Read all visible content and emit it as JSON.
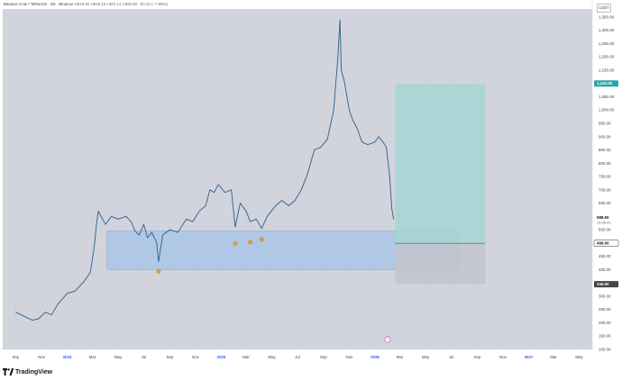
{
  "header": {
    "symbol": "Binance Coin / TetherUS · 3D · Binance",
    "ohlc": "O629.92 H646.15 L587.14 C589.50 −50.42 (−7.88%)"
  },
  "currency_badge": "USDT",
  "footer": {
    "brand": "TradingView"
  },
  "colors": {
    "background": "#d1d4dc",
    "line": "#2a5f8f",
    "demand_zone": "#a8c4e8",
    "profit_zone": "#a7d5d3",
    "loss_zone": "#c3c4cb",
    "target_label": "#2ba3a8",
    "stop_label": "#444444",
    "marker": "#e59a3b"
  },
  "chart_data": {
    "type": "line",
    "title": "",
    "xlabel": "",
    "ylabel": "",
    "ylim": [
      100,
      1380
    ],
    "x_ticks": [
      "Sep",
      "Nov",
      "2024",
      "Mar",
      "May",
      "Jul",
      "Sep",
      "Nov",
      "2025",
      "Mar",
      "May",
      "Jul",
      "Sep",
      "Nov",
      "2026",
      "Mar",
      "May",
      "Jul",
      "Sep",
      "Nov",
      "2027",
      "Mar",
      "May"
    ],
    "y_ticks": [
      "1,350.00",
      "1,300.00",
      "1,250.00",
      "1,200.00",
      "1,150.00",
      "1,050.00",
      "1,000.00",
      "950.00",
      "900.00",
      "850.00",
      "800.00",
      "750.00",
      "700.00",
      "650.00",
      "550.00",
      "450.00",
      "400.00",
      "350.00",
      "300.00",
      "250.00",
      "200.00",
      "150.00",
      "100.00"
    ],
    "series": [
      {
        "x": [
          "2023-09-01",
          "2023-09-20",
          "2023-10-10",
          "2023-10-25",
          "2023-11-10",
          "2023-11-25",
          "2023-12-10",
          "2024-01-01",
          "2024-01-20",
          "2024-02-10",
          "2024-02-25",
          "2024-03-05",
          "2024-03-10",
          "2024-03-15",
          "2024-03-20",
          "2024-04-01",
          "2024-04-15",
          "2024-05-01",
          "2024-05-20",
          "2024-06-01",
          "2024-06-10",
          "2024-06-20",
          "2024-07-01",
          "2024-07-10",
          "2024-07-20",
          "2024-08-01",
          "2024-08-05",
          "2024-08-15",
          "2024-09-01",
          "2024-09-20",
          "2024-10-10",
          "2024-10-25",
          "2024-11-10",
          "2024-11-25",
          "2024-12-05",
          "2024-12-15",
          "2024-12-25",
          "2025-01-10",
          "2025-01-25",
          "2025-02-03",
          "2025-02-15",
          "2025-03-01",
          "2025-03-11",
          "2025-03-25",
          "2025-04-07",
          "2025-04-20",
          "2025-05-10",
          "2025-05-25",
          "2025-06-10",
          "2025-06-25",
          "2025-07-10",
          "2025-07-25",
          "2025-08-10",
          "2025-08-25",
          "2025-09-10",
          "2025-09-25",
          "2025-10-05",
          "2025-10-10",
          "2025-10-13",
          "2025-10-20",
          "2025-11-01",
          "2025-11-10",
          "2025-11-20",
          "2025-12-01",
          "2025-12-15",
          "2026-01-01",
          "2026-01-10",
          "2026-01-20",
          "2026-01-28",
          "2026-02-05",
          "2026-02-10",
          "2026-02-14"
        ],
        "values": [
          240,
          225,
          210,
          215,
          240,
          230,
          270,
          310,
          320,
          355,
          390,
          480,
          560,
          620,
          605,
          570,
          600,
          590,
          600,
          580,
          545,
          530,
          570,
          520,
          540,
          500,
          430,
          530,
          550,
          540,
          590,
          580,
          620,
          640,
          700,
          690,
          720,
          690,
          700,
          560,
          650,
          620,
          580,
          590,
          555,
          600,
          640,
          660,
          640,
          660,
          700,
          760,
          850,
          860,
          890,
          1000,
          1200,
          1340,
          1150,
          1110,
          1000,
          960,
          930,
          880,
          870,
          880,
          900,
          880,
          860,
          750,
          630,
          589.5
        ]
      }
    ],
    "demand_zone": [
      400,
      545
    ],
    "position": {
      "entry": 499,
      "target": 1100,
      "stop": 345
    },
    "markers": [
      {
        "x": "2024-08-05",
        "y": 400
      },
      {
        "x": "2025-02-03",
        "y": 505
      },
      {
        "x": "2025-03-11",
        "y": 510
      },
      {
        "x": "2025-04-07",
        "y": 520
      }
    ],
    "price_labels": [
      {
        "price": 1100,
        "text": "1,100.00",
        "style": "target"
      },
      {
        "price": 589.5,
        "text": "589.50",
        "sub": "12:55:41",
        "style": "last"
      },
      {
        "price": 499,
        "text": "499.00",
        "style": "entry"
      },
      {
        "price": 345,
        "text": "345.00",
        "style": "stop"
      }
    ]
  }
}
